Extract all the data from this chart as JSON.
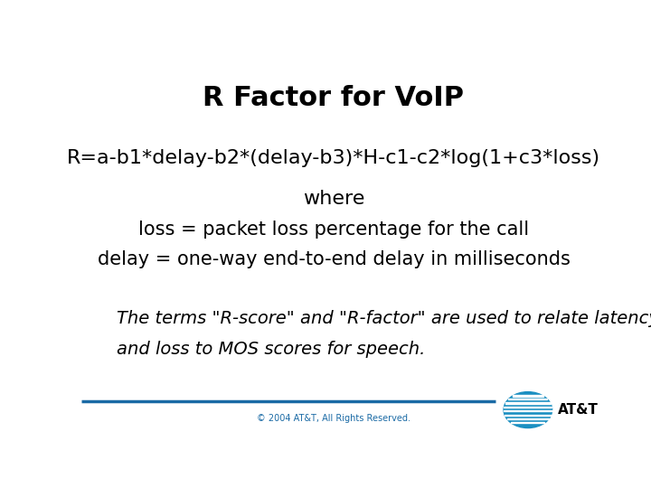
{
  "title": "R Factor for VoIP",
  "title_fontsize": 22,
  "title_fontweight": "bold",
  "title_color": "#000000",
  "formula": "R=a-b1*delay-b2*(delay-b3)*H-c1-c2*log(1+c3*loss)",
  "formula_fontsize": 16,
  "where_text": "where",
  "where_fontsize": 16,
  "loss_text": "loss = packet loss percentage for the call",
  "loss_fontsize": 15,
  "delay_text": "delay = one-way end-to-end delay in milliseconds",
  "delay_fontsize": 15,
  "italic_text_line1": "The terms \"R-score\" and \"R-factor\" are used to relate latency",
  "italic_text_line2": "and loss to MOS scores for speech.",
  "italic_fontsize": 14,
  "footer_text": "© 2004 AT&T, All Rights Reserved.",
  "footer_fontsize": 7,
  "footer_color": "#1a6aa5",
  "line_color": "#1a6aa5",
  "background_color": "#ffffff",
  "att_text": "AT&T",
  "att_fontsize": 11,
  "globe_color": "#1a8fc1"
}
